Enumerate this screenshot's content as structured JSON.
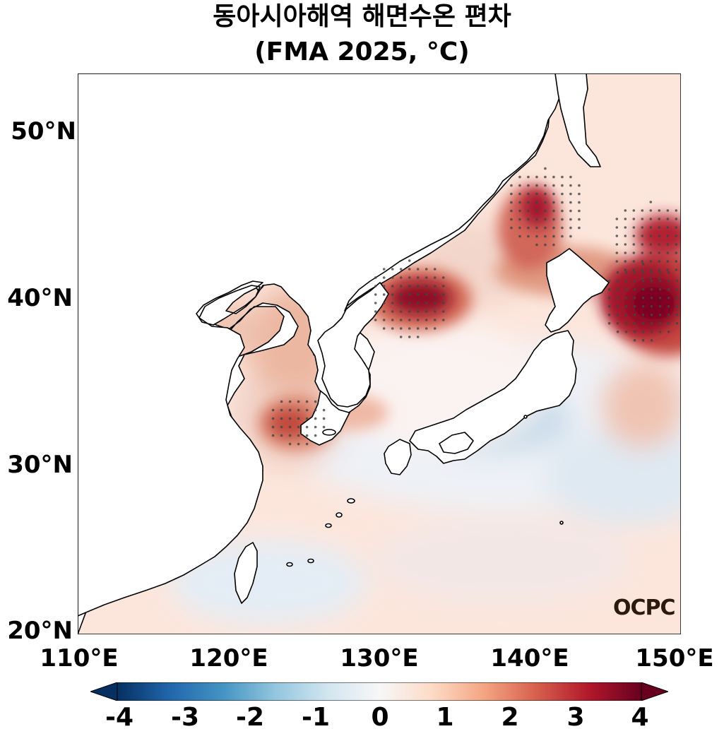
{
  "title": {
    "line1": "동아시아해역 해면수온 편차",
    "line2": "(FMA 2025, °C)"
  },
  "y_ticks": [
    "50°N",
    "40°N",
    "30°N",
    "20°N"
  ],
  "x_ticks": [
    "110°E",
    "120°E",
    "130°E",
    "140°E",
    "150°E"
  ],
  "colorbar": {
    "ticks": [
      "-4",
      "-3",
      "-2",
      "-1",
      "0",
      "1",
      "2",
      "3",
      "4"
    ],
    "min": -4,
    "max": 4,
    "colors": [
      "#053061",
      "#2166ac",
      "#4393c3",
      "#92c5de",
      "#d1e5f0",
      "#f7f7f7",
      "#fddbc7",
      "#f4a582",
      "#d6604d",
      "#b2182b",
      "#67001f"
    ],
    "extend": "both"
  },
  "logo": "OCPC",
  "map": {
    "lon_range": [
      110,
      150
    ],
    "lat_range": [
      20,
      53.5
    ],
    "variable": "SST anomaly",
    "warm_anomaly_centers": [
      {
        "region": "East Sea (Sea of Japan) north",
        "lon": 132,
        "lat": 40,
        "value": 4
      },
      {
        "region": "Off NE Japan",
        "lon": 147.5,
        "lat": 39.8,
        "value": 4
      },
      {
        "region": "Off Hokkaido / Kuril",
        "lon": 148,
        "lat": 43.5,
        "value": 3.5
      },
      {
        "region": "Tatar Strait",
        "lon": 141,
        "lat": 45.5,
        "value": 3.5
      },
      {
        "region": "East China Sea north",
        "lon": 124.5,
        "lat": 32.8,
        "value": 2.5
      },
      {
        "region": "Yellow Sea",
        "lon": 123.5,
        "lat": 37.5,
        "value": 1.5
      }
    ],
    "cool_anomaly_centers": [
      {
        "region": "South of Japan",
        "lon": 134.5,
        "lat": 32.5,
        "value": -1
      },
      {
        "region": "Northwest Pacific",
        "lon": 146,
        "lat": 29,
        "value": -0.6
      },
      {
        "region": "East of Taiwan",
        "lon": 124,
        "lat": 23.5,
        "value": -0.5
      }
    ]
  }
}
